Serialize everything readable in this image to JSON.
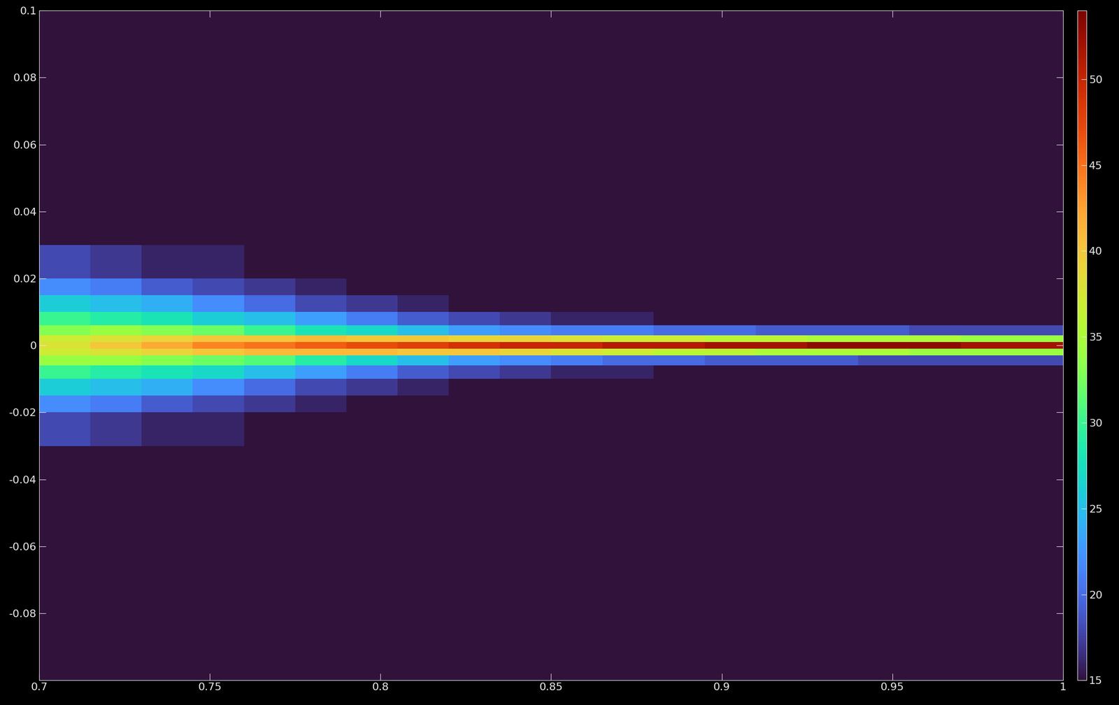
{
  "chart_data": {
    "type": "heatmap",
    "x_edges": [
      0.7,
      0.715,
      0.73,
      0.745,
      0.76,
      0.775,
      0.79,
      0.805,
      0.82,
      0.835,
      0.85,
      0.865,
      0.88,
      0.895,
      0.91,
      0.925,
      0.94,
      0.955,
      0.97,
      0.985,
      1.0
    ],
    "y_edges": [
      -0.1,
      -0.06,
      -0.03,
      -0.02,
      -0.015,
      -0.01,
      -0.006,
      -0.003,
      -0.001,
      0.001,
      0.003,
      0.006,
      0.01,
      0.015,
      0.02,
      0.03,
      0.06,
      0.1
    ],
    "cells": [
      [
        15,
        15,
        15,
        15,
        15,
        15,
        15,
        15,
        15,
        15,
        15,
        15,
        15,
        15,
        15,
        15,
        15,
        15,
        15,
        15
      ],
      [
        15,
        15,
        15,
        15,
        15,
        15,
        15,
        15,
        15,
        15,
        15,
        15,
        15,
        15,
        15,
        15,
        15,
        15,
        15,
        15
      ],
      [
        18,
        17,
        16,
        16,
        15,
        15,
        15,
        15,
        15,
        15,
        15,
        15,
        15,
        15,
        15,
        15,
        15,
        15,
        15,
        15
      ],
      [
        22,
        21,
        19,
        18,
        17,
        16,
        15,
        15,
        15,
        15,
        15,
        15,
        15,
        15,
        15,
        15,
        15,
        15,
        15,
        15
      ],
      [
        26,
        25,
        24,
        22,
        20,
        18,
        17,
        16,
        15,
        15,
        15,
        15,
        15,
        15,
        15,
        15,
        15,
        15,
        15,
        15
      ],
      [
        30,
        29,
        28,
        27,
        25,
        23,
        21,
        19,
        18,
        17,
        16,
        16,
        15,
        15,
        15,
        15,
        15,
        15,
        15,
        15
      ],
      [
        34,
        34,
        33,
        32,
        31,
        29,
        27,
        25,
        23,
        22,
        21,
        20,
        20,
        19,
        19,
        19,
        18,
        18,
        18,
        18
      ],
      [
        37,
        38,
        39,
        40,
        41,
        41,
        41,
        40,
        40,
        39,
        38,
        37,
        36,
        36,
        35,
        35,
        35,
        34,
        34,
        34
      ],
      [
        38,
        40,
        42,
        44,
        45,
        46,
        47,
        48,
        49,
        50,
        50,
        51,
        51,
        52,
        52,
        53,
        53,
        53,
        52,
        52
      ],
      [
        37,
        38,
        39,
        40,
        40,
        41,
        40,
        40,
        39,
        39,
        38,
        37,
        37,
        36,
        36,
        35,
        35,
        35,
        34,
        34
      ],
      [
        33,
        34,
        33,
        32,
        30,
        28,
        27,
        25,
        23,
        22,
        21,
        21,
        20,
        20,
        19,
        19,
        19,
        18,
        18,
        18
      ],
      [
        30,
        29,
        28,
        26,
        25,
        23,
        21,
        19,
        18,
        17,
        16,
        16,
        15,
        15,
        15,
        15,
        15,
        15,
        15,
        15
      ],
      [
        26,
        25,
        24,
        22,
        20,
        18,
        17,
        16,
        15,
        15,
        15,
        15,
        15,
        15,
        15,
        15,
        15,
        15,
        15,
        15
      ],
      [
        22,
        21,
        19,
        18,
        17,
        16,
        15,
        15,
        15,
        15,
        15,
        15,
        15,
        15,
        15,
        15,
        15,
        15,
        15,
        15
      ],
      [
        18,
        17,
        16,
        16,
        15,
        15,
        15,
        15,
        15,
        15,
        15,
        15,
        15,
        15,
        15,
        15,
        15,
        15,
        15,
        15
      ],
      [
        15,
        15,
        15,
        15,
        15,
        15,
        15,
        15,
        15,
        15,
        15,
        15,
        15,
        15,
        15,
        15,
        15,
        15,
        15,
        15
      ],
      [
        15,
        15,
        15,
        15,
        15,
        15,
        15,
        15,
        15,
        15,
        15,
        15,
        15,
        15,
        15,
        15,
        15,
        15,
        15,
        15
      ]
    ],
    "xlim": [
      0.7,
      1
    ],
    "xticks": [
      0.7,
      0.75,
      0.8,
      0.85,
      0.9,
      0.95,
      1
    ],
    "ylim": [
      -0.1,
      0.1
    ],
    "yticks": [
      -0.08,
      -0.06,
      -0.04,
      -0.02,
      0,
      0.02,
      0.04,
      0.06,
      0.08,
      0.1
    ],
    "colorbar_range": [
      15,
      54
    ],
    "colorbar_ticks": [
      15,
      20,
      25,
      30,
      35,
      40,
      45,
      50
    ]
  }
}
